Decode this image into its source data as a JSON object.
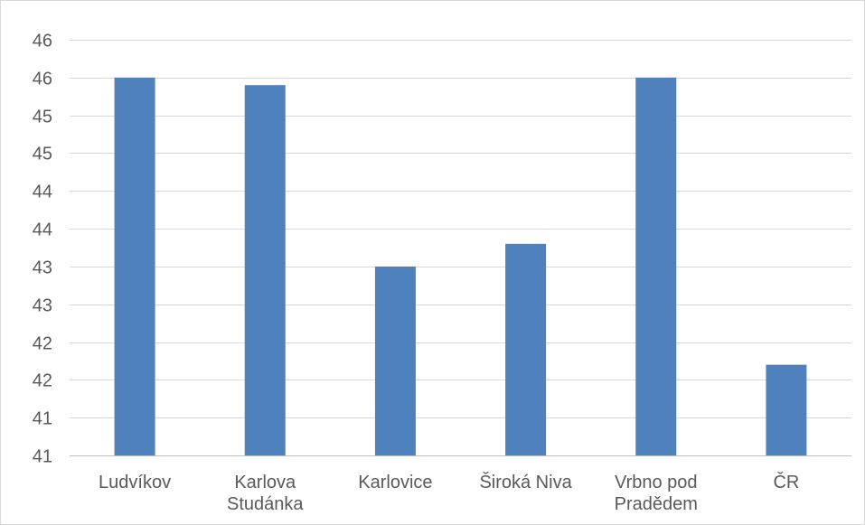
{
  "chart_data": {
    "type": "bar",
    "title": "",
    "xlabel": "",
    "ylabel": "",
    "categories": [
      [
        "Ludvíkov"
      ],
      [
        "Karlova",
        "Studánka"
      ],
      [
        "Karlovice"
      ],
      [
        "Široká Niva"
      ],
      [
        "Vrbno pod",
        "Pradědem"
      ],
      [
        "ČR"
      ]
    ],
    "values": [
      45.5,
      45.4,
      43.0,
      43.3,
      45.5,
      41.7
    ],
    "ylim": [
      40.5,
      46.0
    ],
    "y_ticks": [
      40.5,
      41.0,
      41.5,
      42.0,
      42.5,
      43.0,
      43.5,
      44.0,
      44.5,
      45.0,
      45.5,
      46.0
    ],
    "y_tick_labels": [
      "41",
      "41",
      "42",
      "42",
      "43",
      "43",
      "44",
      "44",
      "45",
      "45",
      "46",
      "46"
    ],
    "grid": true,
    "legend": "none",
    "bar_color": "#4f81bd",
    "grid_color": "#d9d9d9",
    "axis_color": "#bfbfbf",
    "label_color": "#595959"
  }
}
